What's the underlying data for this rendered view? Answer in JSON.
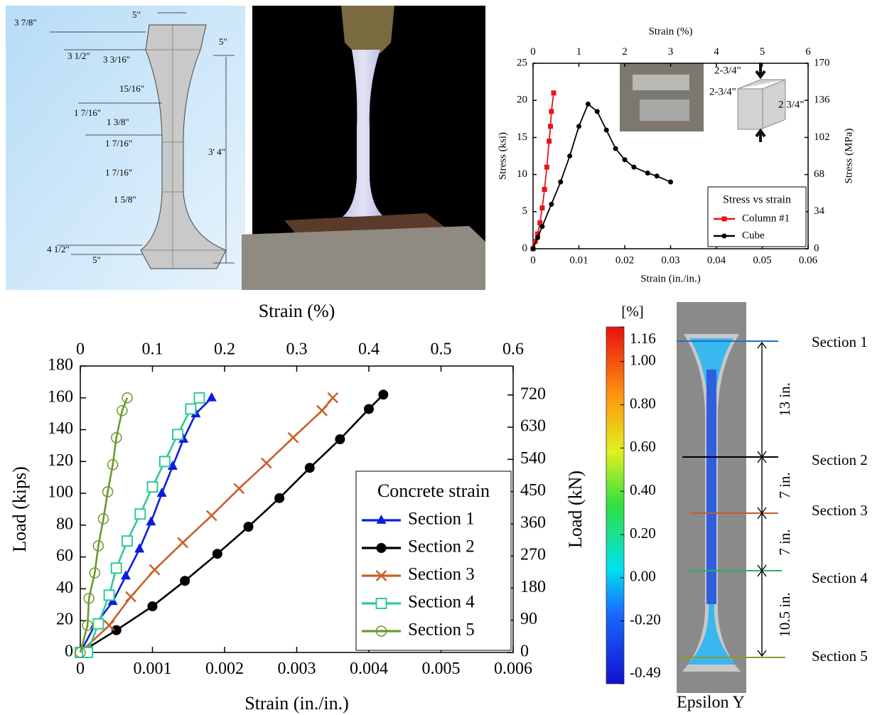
{
  "drawing": {
    "labels": [
      "3 7/8\"",
      "5\"",
      "5\"",
      "3 1/2\"",
      "3 3/16\"",
      "15/16\"",
      "1 7/16\"",
      "1 3/8\"",
      "1 7/16\"",
      "1 7/16\"",
      "1 5/8\"",
      "3' 4\"",
      "4 1/2\"",
      "5\""
    ]
  },
  "chart_data": [
    {
      "type": "line",
      "xlabel": "Strain (in./in.)",
      "x2label": "Strain (%)",
      "ylabel": "Stress (ksi)",
      "y2label": "Stress (MPa)",
      "xlim": [
        0,
        0.06
      ],
      "xticks": [
        0,
        0.01,
        0.02,
        0.03,
        0.04,
        0.05,
        0.06
      ],
      "x2lim": [
        0,
        6
      ],
      "x2ticks": [
        0,
        1,
        2,
        3,
        4,
        5,
        6
      ],
      "ylim": [
        0,
        25
      ],
      "yticks": [
        0,
        5,
        10,
        15,
        20,
        25
      ],
      "y2lim": [
        0,
        170
      ],
      "y2ticks": [
        0,
        34,
        68,
        102,
        136,
        170
      ],
      "legend": "lower right",
      "legend_title": "Stress vs strain",
      "inset_labels": [
        "2-3/4\"",
        "2-3/4\"",
        "2 3/4\""
      ],
      "series": [
        {
          "name": "Column #1",
          "color": "#e8141b",
          "marker": "square",
          "x": [
            0,
            0.0005,
            0.001,
            0.0015,
            0.002,
            0.0025,
            0.003,
            0.0035,
            0.0038,
            0.004,
            0.0045
          ],
          "values": [
            0,
            1,
            2,
            3.5,
            5.5,
            8,
            11,
            14.5,
            16.5,
            18.5,
            21
          ]
        },
        {
          "name": "Cube",
          "color": "#000000",
          "marker": "circle",
          "x": [
            0,
            0.001,
            0.002,
            0.004,
            0.006,
            0.008,
            0.01,
            0.012,
            0.014,
            0.016,
            0.018,
            0.02,
            0.022,
            0.025,
            0.027,
            0.03
          ],
          "values": [
            0,
            1.5,
            3,
            6,
            9,
            12.5,
            16.5,
            19.5,
            18.5,
            16,
            13.5,
            12,
            11,
            10.2,
            9.8,
            9
          ]
        }
      ]
    },
    {
      "type": "line",
      "xlabel": "Strain (in./in.)",
      "x2label": "Strain (%)",
      "ylabel": "Load (kips)",
      "y2label": "Load (kN)",
      "xlim": [
        0,
        0.006
      ],
      "xticks": [
        0,
        0.001,
        0.002,
        0.003,
        0.004,
        0.005,
        0.006
      ],
      "x2lim": [
        0,
        0.6
      ],
      "x2ticks": [
        0,
        0.1,
        0.2,
        0.3,
        0.4,
        0.5,
        0.6
      ],
      "ylim": [
        0,
        180
      ],
      "yticks": [
        0,
        20,
        40,
        60,
        80,
        100,
        120,
        140,
        160,
        180
      ],
      "y2lim": [
        0,
        801
      ],
      "y2ticks": [
        0,
        90,
        180,
        270,
        360,
        450,
        540,
        630,
        720
      ],
      "legend": "lower right",
      "legend_title": "Concrete strain",
      "series": [
        {
          "name": "Section 1",
          "color": "#0a1de0",
          "marker": "triangle",
          "x": [
            0,
            0.0002,
            0.00045,
            0.00063,
            0.00082,
            0.00098,
            0.00113,
            0.00128,
            0.00143,
            0.0016,
            0.00182
          ],
          "values": [
            0,
            17,
            32,
            48,
            65,
            82,
            100,
            117,
            134,
            150,
            160
          ]
        },
        {
          "name": "Section 2",
          "color": "#000000",
          "marker": "circle",
          "x": [
            0,
            0.0005,
            0.001,
            0.00145,
            0.0019,
            0.00233,
            0.00276,
            0.00318,
            0.0036,
            0.004,
            0.0042
          ],
          "values": [
            0,
            14,
            29,
            45,
            62,
            79,
            97,
            116,
            134,
            153,
            162
          ]
        },
        {
          "name": "Section 3",
          "color": "#c8602a",
          "marker": "x",
          "x": [
            0,
            0.0004,
            0.0007,
            0.00103,
            0.00142,
            0.00182,
            0.0022,
            0.00258,
            0.00295,
            0.00335,
            0.0035
          ],
          "values": [
            0,
            17,
            35,
            52,
            69,
            86,
            103,
            119,
            135,
            152,
            160
          ]
        },
        {
          "name": "Section 4",
          "color": "#2ec99a",
          "marker": "opensquare",
          "x": [
            0,
            0.0001,
            0.00025,
            0.0004,
            0.0005,
            0.00065,
            0.00083,
            0.001,
            0.00117,
            0.00135,
            0.00153,
            0.00165
          ],
          "values": [
            0,
            0,
            18,
            36,
            53,
            70,
            87,
            104,
            120,
            137,
            153,
            160
          ]
        },
        {
          "name": "Section 5",
          "color": "#6b9a2e",
          "marker": "opencircle",
          "x": [
            0,
            0.0001,
            0.00012,
            0.0002,
            0.00025,
            0.00032,
            0.00038,
            0.00045,
            0.0005,
            0.00058,
            0.00065
          ],
          "values": [
            0,
            17,
            34,
            50,
            67,
            84,
            101,
            118,
            135,
            152,
            160
          ]
        }
      ]
    },
    {
      "type": "colorbar",
      "label": "[%]",
      "caption": "Epsilon Y",
      "clim": [
        -0.49,
        1.16
      ],
      "ticks": [
        1.16,
        {
          "value": 1,
          "label": "1.00"
        },
        {
          "value": 0.8,
          "label": "0.80"
        },
        {
          "value": 0.6,
          "label": "0.60"
        },
        {
          "value": 0.4,
          "label": "0.40"
        },
        {
          "value": 0.2,
          "label": "0.20"
        },
        {
          "value": 0,
          "label": "0.00"
        },
        {
          "value": -0.2,
          "label": "-0.20"
        },
        -0.49
      ]
    }
  ],
  "sections": {
    "labels": [
      "Section 1",
      "Section 2",
      "Section 3",
      "Section 4",
      "Section 5"
    ],
    "dimensions": [
      "13 in.",
      "7 in.",
      "7 in.",
      "10.5 in."
    ]
  }
}
